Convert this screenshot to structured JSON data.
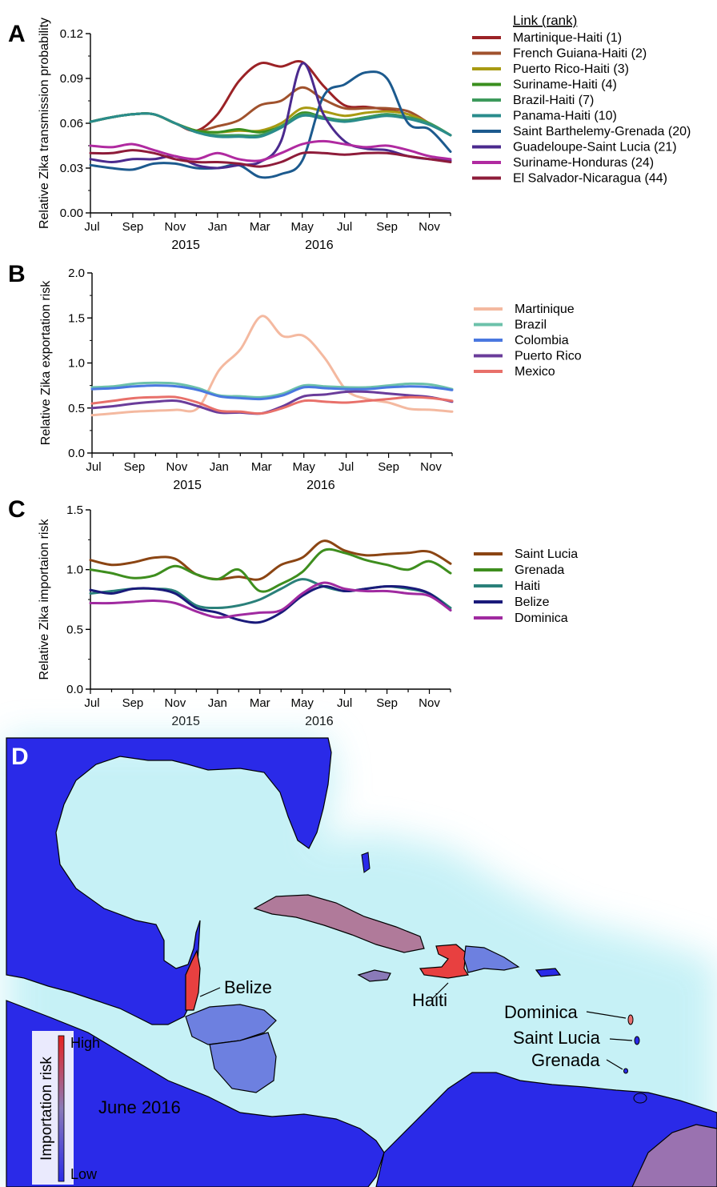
{
  "panel_letters": {
    "a": "A",
    "b": "B",
    "c": "C",
    "d": "D"
  },
  "x_axis": {
    "months": [
      "Jul",
      "Sep",
      "Nov",
      "Jan",
      "Mar",
      "May",
      "Jul",
      "Sep",
      "Nov"
    ],
    "years": [
      "2015",
      "2016"
    ]
  },
  "chart_data": [
    {
      "type": "line",
      "panel": "A",
      "ylabel": "Relative Zika transmission probability",
      "ylim": [
        0,
        0.12
      ],
      "yticks": [
        "0.00",
        "0.03",
        "0.06",
        "0.09",
        "0.12"
      ],
      "legend_title": "Link (rank)",
      "legend_position": "right",
      "x": [
        0,
        1,
        2,
        3,
        4,
        5,
        6,
        7,
        8,
        9,
        10,
        11,
        12,
        13,
        14,
        15,
        16,
        17
      ],
      "series": [
        {
          "name": "Martinique-Haiti (1)",
          "color": "#9b2226",
          "values": [
            0.061,
            0.064,
            0.066,
            0.066,
            0.06,
            0.055,
            0.066,
            0.088,
            0.1,
            0.098,
            0.101,
            0.085,
            0.072,
            0.071,
            0.069,
            0.066,
            0.06,
            0.052
          ]
        },
        {
          "name": "French Guiana-Haiti (2)",
          "color": "#a0522d",
          "values": [
            0.061,
            0.064,
            0.066,
            0.066,
            0.06,
            0.055,
            0.058,
            0.062,
            0.072,
            0.075,
            0.084,
            0.076,
            0.07,
            0.07,
            0.07,
            0.068,
            0.06,
            0.052
          ]
        },
        {
          "name": "Puerto Rico-Haiti (3)",
          "color": "#a89a12",
          "values": [
            0.061,
            0.064,
            0.066,
            0.066,
            0.06,
            0.055,
            0.054,
            0.055,
            0.055,
            0.06,
            0.07,
            0.068,
            0.065,
            0.067,
            0.068,
            0.066,
            0.06,
            0.052
          ]
        },
        {
          "name": "Suriname-Haiti (4)",
          "color": "#3a8f1e",
          "values": [
            0.061,
            0.064,
            0.066,
            0.066,
            0.06,
            0.055,
            0.054,
            0.056,
            0.054,
            0.058,
            0.067,
            0.064,
            0.062,
            0.064,
            0.066,
            0.064,
            0.06,
            0.052
          ]
        },
        {
          "name": "Brazil-Haiti (7)",
          "color": "#3d9a5c",
          "values": [
            0.061,
            0.064,
            0.066,
            0.066,
            0.06,
            0.054,
            0.052,
            0.052,
            0.052,
            0.058,
            0.066,
            0.064,
            0.062,
            0.064,
            0.066,
            0.064,
            0.06,
            0.052
          ]
        },
        {
          "name": "Panama-Haiti (10)",
          "color": "#2a8c8c",
          "values": [
            0.061,
            0.064,
            0.066,
            0.066,
            0.06,
            0.054,
            0.051,
            0.051,
            0.051,
            0.057,
            0.065,
            0.063,
            0.061,
            0.063,
            0.065,
            0.063,
            0.059,
            0.052
          ]
        },
        {
          "name": "Saint Barthelemy-Grenada (20)",
          "color": "#1c5a8e",
          "values": [
            0.032,
            0.03,
            0.029,
            0.033,
            0.033,
            0.03,
            0.03,
            0.032,
            0.024,
            0.026,
            0.035,
            0.078,
            0.086,
            0.094,
            0.09,
            0.06,
            0.056,
            0.041
          ]
        },
        {
          "name": "Guadeloupe-Saint Lucia (21)",
          "color": "#4b2a8e",
          "values": [
            0.036,
            0.034,
            0.036,
            0.036,
            0.038,
            0.032,
            0.03,
            0.032,
            0.034,
            0.048,
            0.1,
            0.066,
            0.048,
            0.043,
            0.042,
            0.038,
            0.036,
            0.035
          ]
        },
        {
          "name": "Suriname-Honduras (24)",
          "color": "#b02aa0",
          "values": [
            0.045,
            0.044,
            0.046,
            0.042,
            0.038,
            0.036,
            0.04,
            0.036,
            0.035,
            0.04,
            0.046,
            0.048,
            0.046,
            0.044,
            0.045,
            0.042,
            0.038,
            0.036
          ]
        },
        {
          "name": "El Salvador-Nicaragua (44)",
          "color": "#8e1c3a",
          "values": [
            0.04,
            0.04,
            0.042,
            0.04,
            0.036,
            0.034,
            0.034,
            0.033,
            0.031,
            0.034,
            0.04,
            0.04,
            0.039,
            0.04,
            0.04,
            0.038,
            0.036,
            0.034
          ]
        }
      ]
    },
    {
      "type": "line",
      "panel": "B",
      "ylabel": "Relative Zika exportation risk",
      "ylim": [
        0,
        2.0
      ],
      "yticks": [
        "0.0",
        "0.5",
        "1.0",
        "1.5",
        "2.0"
      ],
      "legend_position": "right",
      "x": [
        0,
        1,
        2,
        3,
        4,
        5,
        6,
        7,
        8,
        9,
        10,
        11,
        12,
        13,
        14,
        15,
        16,
        17
      ],
      "series": [
        {
          "name": "Martinique",
          "color": "#f4b9a0",
          "values": [
            0.42,
            0.44,
            0.46,
            0.47,
            0.48,
            0.5,
            0.92,
            1.15,
            1.52,
            1.3,
            1.3,
            1.05,
            0.7,
            0.6,
            0.56,
            0.49,
            0.48,
            0.46
          ]
        },
        {
          "name": "Brazil",
          "color": "#6cc1aa",
          "values": [
            0.73,
            0.74,
            0.77,
            0.78,
            0.77,
            0.72,
            0.64,
            0.63,
            0.62,
            0.66,
            0.75,
            0.74,
            0.73,
            0.73,
            0.75,
            0.77,
            0.76,
            0.71
          ]
        },
        {
          "name": "Colombia",
          "color": "#4a78e0",
          "values": [
            0.71,
            0.72,
            0.74,
            0.75,
            0.74,
            0.7,
            0.63,
            0.61,
            0.6,
            0.64,
            0.73,
            0.72,
            0.71,
            0.71,
            0.73,
            0.74,
            0.73,
            0.7
          ]
        },
        {
          "name": "Puerto Rico",
          "color": "#6a3c9a",
          "values": [
            0.5,
            0.52,
            0.55,
            0.57,
            0.58,
            0.52,
            0.45,
            0.45,
            0.44,
            0.52,
            0.63,
            0.65,
            0.68,
            0.68,
            0.66,
            0.64,
            0.62,
            0.57
          ]
        },
        {
          "name": "Mexico",
          "color": "#e8706a",
          "values": [
            0.55,
            0.58,
            0.61,
            0.62,
            0.62,
            0.56,
            0.47,
            0.46,
            0.44,
            0.5,
            0.58,
            0.57,
            0.56,
            0.58,
            0.6,
            0.62,
            0.61,
            0.58
          ]
        }
      ]
    },
    {
      "type": "line",
      "panel": "C",
      "ylabel": "Relative Zika importaion risk",
      "ylim": [
        0,
        1.5
      ],
      "yticks": [
        "0.0",
        "0.5",
        "1.0",
        "1.5"
      ],
      "legend_position": "right",
      "x": [
        0,
        1,
        2,
        3,
        4,
        5,
        6,
        7,
        8,
        9,
        10,
        11,
        12,
        13,
        14,
        15,
        16,
        17
      ],
      "series": [
        {
          "name": "Saint Lucia",
          "color": "#8b4513",
          "values": [
            1.08,
            1.04,
            1.06,
            1.1,
            1.09,
            0.96,
            0.92,
            0.94,
            0.92,
            1.04,
            1.1,
            1.24,
            1.16,
            1.12,
            1.13,
            1.14,
            1.15,
            1.05
          ]
        },
        {
          "name": "Grenada",
          "color": "#3e8e1e",
          "values": [
            1.0,
            0.97,
            0.93,
            0.95,
            1.03,
            0.96,
            0.92,
            1.0,
            0.82,
            0.88,
            0.98,
            1.16,
            1.14,
            1.08,
            1.04,
            1.0,
            1.07,
            0.97
          ]
        },
        {
          "name": "Haiti",
          "color": "#2a807a",
          "values": [
            0.8,
            0.82,
            0.84,
            0.84,
            0.82,
            0.7,
            0.68,
            0.7,
            0.75,
            0.84,
            0.92,
            0.86,
            0.82,
            0.84,
            0.86,
            0.84,
            0.8,
            0.68
          ]
        },
        {
          "name": "Belize",
          "color": "#1a1a7a",
          "values": [
            0.83,
            0.8,
            0.84,
            0.84,
            0.8,
            0.68,
            0.64,
            0.58,
            0.56,
            0.64,
            0.78,
            0.86,
            0.82,
            0.84,
            0.86,
            0.85,
            0.8,
            0.66
          ]
        },
        {
          "name": "Dominica",
          "color": "#a02aa0",
          "values": [
            0.72,
            0.72,
            0.73,
            0.74,
            0.72,
            0.65,
            0.6,
            0.62,
            0.64,
            0.66,
            0.8,
            0.89,
            0.84,
            0.82,
            0.82,
            0.8,
            0.78,
            0.66
          ]
        }
      ]
    }
  ],
  "map": {
    "labels": [
      "Belize",
      "Haiti",
      "Dominica",
      "Saint Lucia",
      "Grenada"
    ],
    "period": "June 2016",
    "legend_title": "Importation risk",
    "legend_high": "High",
    "legend_low": "Low",
    "colors": {
      "land": "#2a2ae8",
      "high": "#e84040",
      "mid": "#9a72b0",
      "low_mid": "#6d80e0",
      "sea_glow": "#c8f4f8"
    }
  }
}
